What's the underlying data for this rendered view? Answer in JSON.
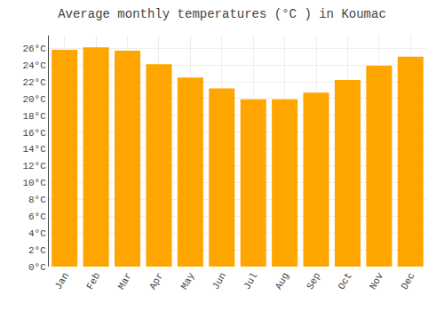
{
  "chart_data": {
    "type": "bar",
    "title": "Average monthly temperatures (°C ) in Koumac",
    "categories": [
      "Jan",
      "Feb",
      "Mar",
      "Apr",
      "May",
      "Jun",
      "Jul",
      "Aug",
      "Sep",
      "Oct",
      "Nov",
      "Dec"
    ],
    "values": [
      25.8,
      26.1,
      25.7,
      24.1,
      22.5,
      21.2,
      19.9,
      19.9,
      20.7,
      22.2,
      23.9,
      25.0
    ],
    "color": "#FFA500",
    "ylim": [
      0,
      27.5
    ],
    "yticks": [
      {
        "value": 0,
        "label": "0°C"
      },
      {
        "value": 2,
        "label": "2°C"
      },
      {
        "value": 4,
        "label": "4°C"
      },
      {
        "value": 6,
        "label": "6°C"
      },
      {
        "value": 8,
        "label": "8°C"
      },
      {
        "value": 10,
        "label": "10°C"
      },
      {
        "value": 12,
        "label": "12°C"
      },
      {
        "value": 14,
        "label": "14°C"
      },
      {
        "value": 16,
        "label": "16°C"
      },
      {
        "value": 18,
        "label": "18°C"
      },
      {
        "value": 20,
        "label": "20°C"
      },
      {
        "value": 22,
        "label": "22°C"
      },
      {
        "value": 24,
        "label": "24°C"
      },
      {
        "value": 26,
        "label": "26°C"
      }
    ],
    "grid": true
  }
}
